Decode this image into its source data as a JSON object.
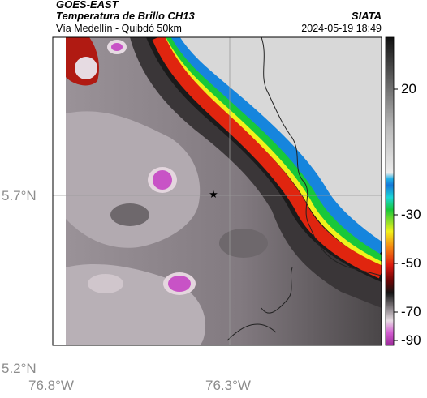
{
  "header": {
    "agency": "GOES-EAST",
    "product": "Temperatura de Brillo CH13",
    "region": "Vía Medellín - Quibdó 50km",
    "source": "SIATA",
    "timestamp": "2024-05-19 18:49"
  },
  "map": {
    "lat_labels": [
      "5.7°N",
      "5.2°N"
    ],
    "lon_labels": [
      "76.8°W",
      "76.3°W"
    ],
    "marker": "★"
  },
  "colorbar": {
    "ticks": [
      "20",
      "-30",
      "-50",
      "-70",
      "-90"
    ]
  }
}
